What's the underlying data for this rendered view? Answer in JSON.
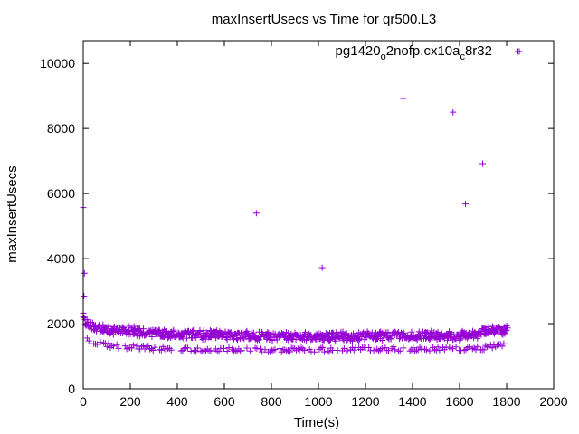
{
  "chart_data": {
    "type": "scatter",
    "title": "maxInsertUsecs vs Time for qr500.L3",
    "xlabel": "Time(s)",
    "ylabel": "maxInsertUsecs",
    "xlim": [
      0,
      2000
    ],
    "ylim": [
      0,
      10700
    ],
    "xticks": [
      "0",
      "200",
      "400",
      "600",
      "800",
      "1000",
      "1200",
      "1400",
      "1600",
      "1800",
      "2000"
    ],
    "yticks": [
      "0",
      "2000",
      "4000",
      "6000",
      "8000",
      "10000"
    ],
    "grid": false,
    "legend_position": "top-right",
    "series": [
      {
        "name": "pg1420_o2nofp.cx10a_c8r32",
        "legend": {
          "pre": "pg1420",
          "sub1": "o",
          "mid": "2nofp.cx10a",
          "sub2": "c",
          "post": "8r32"
        },
        "color": "#9400d3",
        "outliers": [
          {
            "x": 0,
            "y": 5570
          },
          {
            "x": 5,
            "y": 3550
          },
          {
            "x": 3,
            "y": 2850
          },
          {
            "x": 736,
            "y": 5400
          },
          {
            "x": 1016,
            "y": 3720
          },
          {
            "x": 1360,
            "y": 8920
          },
          {
            "x": 1572,
            "y": 8500
          },
          {
            "x": 1625,
            "y": 5680
          },
          {
            "x": 1698,
            "y": 6920
          },
          {
            "x": 1848,
            "y": 10370
          }
        ],
        "upper_band": [
          {
            "x": 0,
            "y": 2200
          },
          {
            "x": 10,
            "y": 2050
          },
          {
            "x": 30,
            "y": 1950
          },
          {
            "x": 60,
            "y": 1870
          },
          {
            "x": 100,
            "y": 1820
          },
          {
            "x": 200,
            "y": 1780
          },
          {
            "x": 300,
            "y": 1720
          },
          {
            "x": 400,
            "y": 1680
          },
          {
            "x": 500,
            "y": 1660
          },
          {
            "x": 600,
            "y": 1640
          },
          {
            "x": 700,
            "y": 1620
          },
          {
            "x": 800,
            "y": 1610
          },
          {
            "x": 900,
            "y": 1600
          },
          {
            "x": 1000,
            "y": 1600
          },
          {
            "x": 1100,
            "y": 1610
          },
          {
            "x": 1200,
            "y": 1620
          },
          {
            "x": 1300,
            "y": 1630
          },
          {
            "x": 1400,
            "y": 1640
          },
          {
            "x": 1500,
            "y": 1640
          },
          {
            "x": 1600,
            "y": 1620
          },
          {
            "x": 1680,
            "y": 1650
          },
          {
            "x": 1700,
            "y": 1780
          },
          {
            "x": 1800,
            "y": 1800
          }
        ],
        "lower_band": [
          {
            "x": 10,
            "y": 1550
          },
          {
            "x": 50,
            "y": 1420
          },
          {
            "x": 100,
            "y": 1340
          },
          {
            "x": 200,
            "y": 1280
          },
          {
            "x": 300,
            "y": 1250
          },
          {
            "x": 400,
            "y": 1220
          },
          {
            "x": 500,
            "y": 1200
          },
          {
            "x": 600,
            "y": 1200
          },
          {
            "x": 700,
            "y": 1200
          },
          {
            "x": 800,
            "y": 1200
          },
          {
            "x": 900,
            "y": 1200
          },
          {
            "x": 1000,
            "y": 1200
          },
          {
            "x": 1100,
            "y": 1210
          },
          {
            "x": 1200,
            "y": 1220
          },
          {
            "x": 1300,
            "y": 1220
          },
          {
            "x": 1400,
            "y": 1220
          },
          {
            "x": 1500,
            "y": 1220
          },
          {
            "x": 1600,
            "y": 1230
          },
          {
            "x": 1700,
            "y": 1260
          },
          {
            "x": 1800,
            "y": 1350
          }
        ],
        "time_end": 1805
      }
    ]
  }
}
